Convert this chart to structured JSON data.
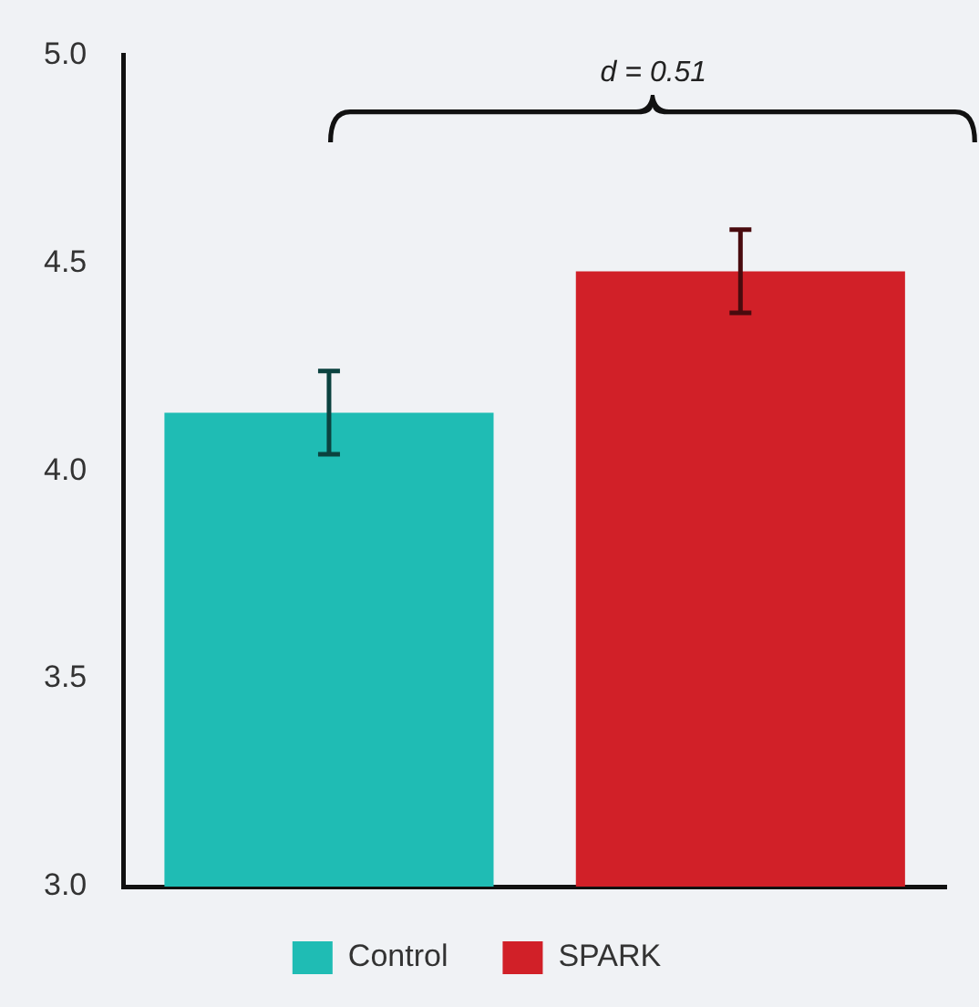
{
  "chart_data": {
    "type": "bar",
    "categories": [
      null,
      null
    ],
    "series": [
      {
        "name": "Control",
        "color": "#1fbcb4",
        "values": [
          4.14,
          null
        ],
        "errors": [
          0.1,
          null
        ]
      },
      {
        "name": "SPARK",
        "color": "#d12028",
        "values": [
          null,
          4.48
        ],
        "errors": [
          null,
          0.1
        ]
      }
    ],
    "ylim": [
      3.0,
      5.0
    ],
    "yticks": [
      {
        "value": 3,
        "label": "3.0"
      },
      {
        "value": 3.5,
        "label": "3.5"
      },
      {
        "value": 4,
        "label": "4.0"
      },
      {
        "value": 4.5,
        "label": "4.5"
      },
      {
        "value": 5,
        "label": "5.0"
      }
    ],
    "grid": false,
    "legend": "bottom",
    "annotations": [
      "d = 0.51"
    ]
  }
}
